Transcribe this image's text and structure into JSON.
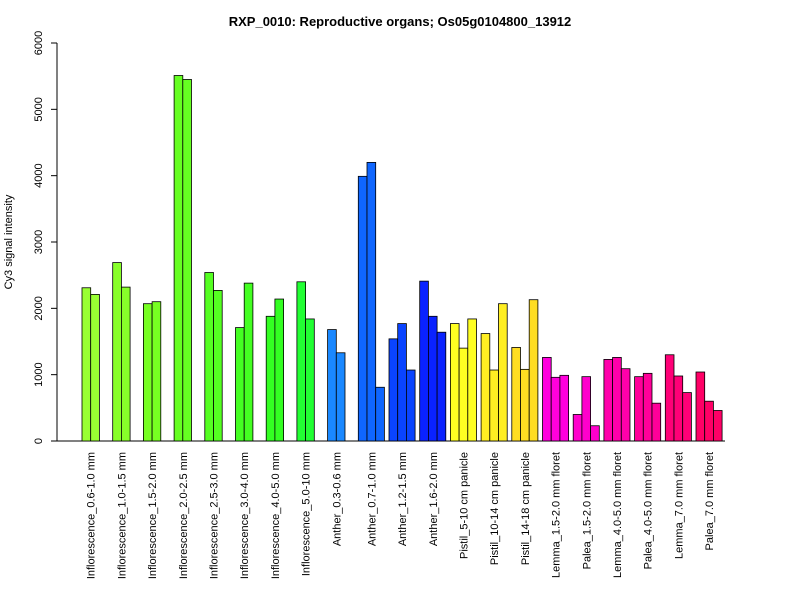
{
  "chart_data": {
    "type": "bar",
    "title": "RXP_0010: Reproductive organs; Os05g0104800_13912",
    "xlabel": "",
    "ylabel": "Cy3 signal intensity",
    "ylim": [
      0,
      6000
    ],
    "yticks": [
      0,
      1000,
      2000,
      3000,
      4000,
      5000,
      6000
    ],
    "grid": false,
    "categories": [
      "Inflorescence_0.6-1.0 mm",
      "Inflorescence_1.0-1.5 mm",
      "Inflorescence_1.5-2.0 mm",
      "Inflorescence_2.0-2.5 mm",
      "Inflorescence_2.5-3.0 mm",
      "Inflorescence_3.0-4.0 mm",
      "Inflorescence_4.0-5.0 mm",
      "Inflorescence_5.0-10 mm",
      "Anther_0.3-0.6 mm",
      "Anther_0.7-1.0 mm",
      "Anther_1.2-1.5 mm",
      "Anther_1.6-2.0 mm",
      "Pistil_5-10 cm panicle",
      "Pistil_10-14 cm panicle",
      "Pistil_14-18 cm panicle",
      "Lemma_1.5-2.0 mm floret",
      "Palea_1.5-2.0 mm floret",
      "Lemma_4.0-5.0 mm floret",
      "Palea_4.0-5.0 mm floret",
      "Lemma_7.0 mm floret",
      "Palea_7.0 mm floret"
    ],
    "groups": [
      {
        "values": [
          2310,
          2210
        ],
        "color": "#99ff33"
      },
      {
        "values": [
          2690,
          2320
        ],
        "color": "#88ff2a"
      },
      {
        "values": [
          2070,
          2100
        ],
        "color": "#77ff22"
      },
      {
        "values": [
          5510,
          5450
        ],
        "color": "#66ff22"
      },
      {
        "values": [
          2540,
          2270
        ],
        "color": "#55ff22"
      },
      {
        "values": [
          1710,
          2380
        ],
        "color": "#44ff22"
      },
      {
        "values": [
          1880,
          2140
        ],
        "color": "#33ff22"
      },
      {
        "values": [
          2400,
          1840
        ],
        "color": "#22ff33"
      },
      {
        "values": [
          1680,
          1330
        ],
        "color": "#1a88ff"
      },
      {
        "values": [
          3990,
          4200,
          810
        ],
        "color": "#0f66ff"
      },
      {
        "values": [
          1540,
          1770,
          1070
        ],
        "color": "#0a44ff"
      },
      {
        "values": [
          2410,
          1880,
          1640
        ],
        "color": "#0a22ff"
      },
      {
        "values": [
          1770,
          1400,
          1840
        ],
        "color": "#ffff22"
      },
      {
        "values": [
          1620,
          1070,
          2070
        ],
        "color": "#ffee22"
      },
      {
        "values": [
          1410,
          1080,
          2130
        ],
        "color": "#ffdd22"
      },
      {
        "values": [
          1260,
          960,
          990
        ],
        "color": "#ff00dd"
      },
      {
        "values": [
          400,
          970,
          230
        ],
        "color": "#ff00cc"
      },
      {
        "values": [
          1230,
          1260,
          1090
        ],
        "color": "#ff00aa"
      },
      {
        "values": [
          970,
          1020,
          570
        ],
        "color": "#ff0099"
      },
      {
        "values": [
          1300,
          980,
          730
        ],
        "color": "#ff0077"
      },
      {
        "values": [
          1040,
          600,
          460
        ],
        "color": "#ff0066"
      }
    ]
  }
}
